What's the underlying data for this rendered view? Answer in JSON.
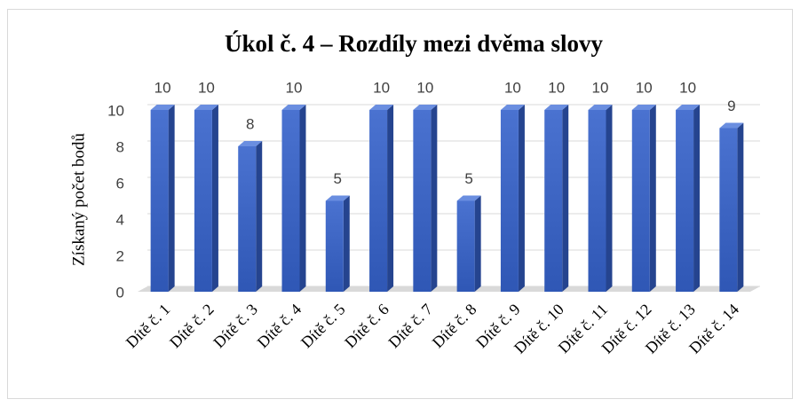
{
  "chart_data": {
    "type": "bar",
    "title": "Úkol č. 4 – Rozdíly mezi dvěma slovy",
    "ylabel": "Získaný počet bodů",
    "categories": [
      "Dítě č. 1",
      "Dítě č. 2",
      "Dítě č. 3",
      "Dítě č. 4",
      "Dítě č. 5",
      "Dítě č. 6",
      "Dítě č. 7",
      "Dítě č. 8",
      "Dítě č. 9",
      "Dítě č. 10",
      "Dítě č. 11",
      "Dítě č. 12",
      "Dítě č. 13",
      "Dítě č. 14"
    ],
    "values": [
      10,
      10,
      8,
      10,
      5,
      10,
      10,
      5,
      10,
      10,
      10,
      10,
      10,
      9
    ],
    "color": "#3a63c4",
    "ylim": [
      0,
      10
    ],
    "yticks": [
      0,
      2,
      4,
      6,
      8,
      10
    ],
    "grid": true,
    "data_labels": true
  }
}
